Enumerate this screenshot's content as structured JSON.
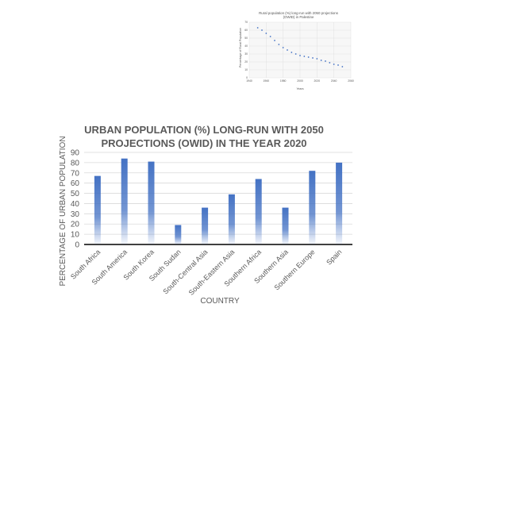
{
  "chart_data": [
    {
      "type": "bar",
      "title_lines": [
        "URBAN POPULATION (%) LONG-RUN WITH 2050",
        "PROJECTIONS (OWID) IN THE YEAR 2020"
      ],
      "xlabel": "COUNTRY",
      "ylabel": "PERCENTAGE OF URBAN POPULATION",
      "ylim": [
        0,
        90
      ],
      "yticks": [
        "0",
        "10",
        "20",
        "30",
        "40",
        "50",
        "60",
        "70",
        "80",
        "90"
      ],
      "grid": true,
      "bar_color": "#4472c4",
      "categories": [
        "South Africa",
        "South America",
        "South Korea",
        "South Sudan",
        "South-Central Asia",
        "South-Eastern Asia",
        "Southern Africa",
        "Southern Asia",
        "Southern Europe",
        "Spain"
      ],
      "values": [
        67,
        84,
        81,
        19,
        36,
        49,
        64,
        36,
        72,
        80
      ]
    },
    {
      "type": "scatter",
      "title_lines": [
        "Rural population (%) long-run with 2050 projections",
        "(OWID) in Palestine"
      ],
      "xlabel": "Years",
      "ylabel": "Percentage of Rural Population",
      "xlim": [
        1940,
        2060
      ],
      "ylim": [
        0,
        70
      ],
      "xticks": [
        "1940",
        "1960",
        "1980",
        "2000",
        "2020",
        "2040",
        "2060"
      ],
      "yticks": [
        "0",
        "10",
        "20",
        "30",
        "40",
        "50",
        "60",
        "70"
      ],
      "grid": true,
      "point_color": "#4472c4",
      "x": [
        1950,
        1955,
        1960,
        1965,
        1970,
        1975,
        1980,
        1985,
        1990,
        1995,
        2000,
        2005,
        2010,
        2015,
        2020,
        2025,
        2030,
        2035,
        2040,
        2045,
        2050
      ],
      "y": [
        63,
        60,
        56,
        52,
        47,
        42,
        38,
        35,
        32,
        30,
        28,
        27,
        26,
        25,
        24,
        22,
        21,
        19,
        17,
        16,
        14
      ]
    }
  ]
}
